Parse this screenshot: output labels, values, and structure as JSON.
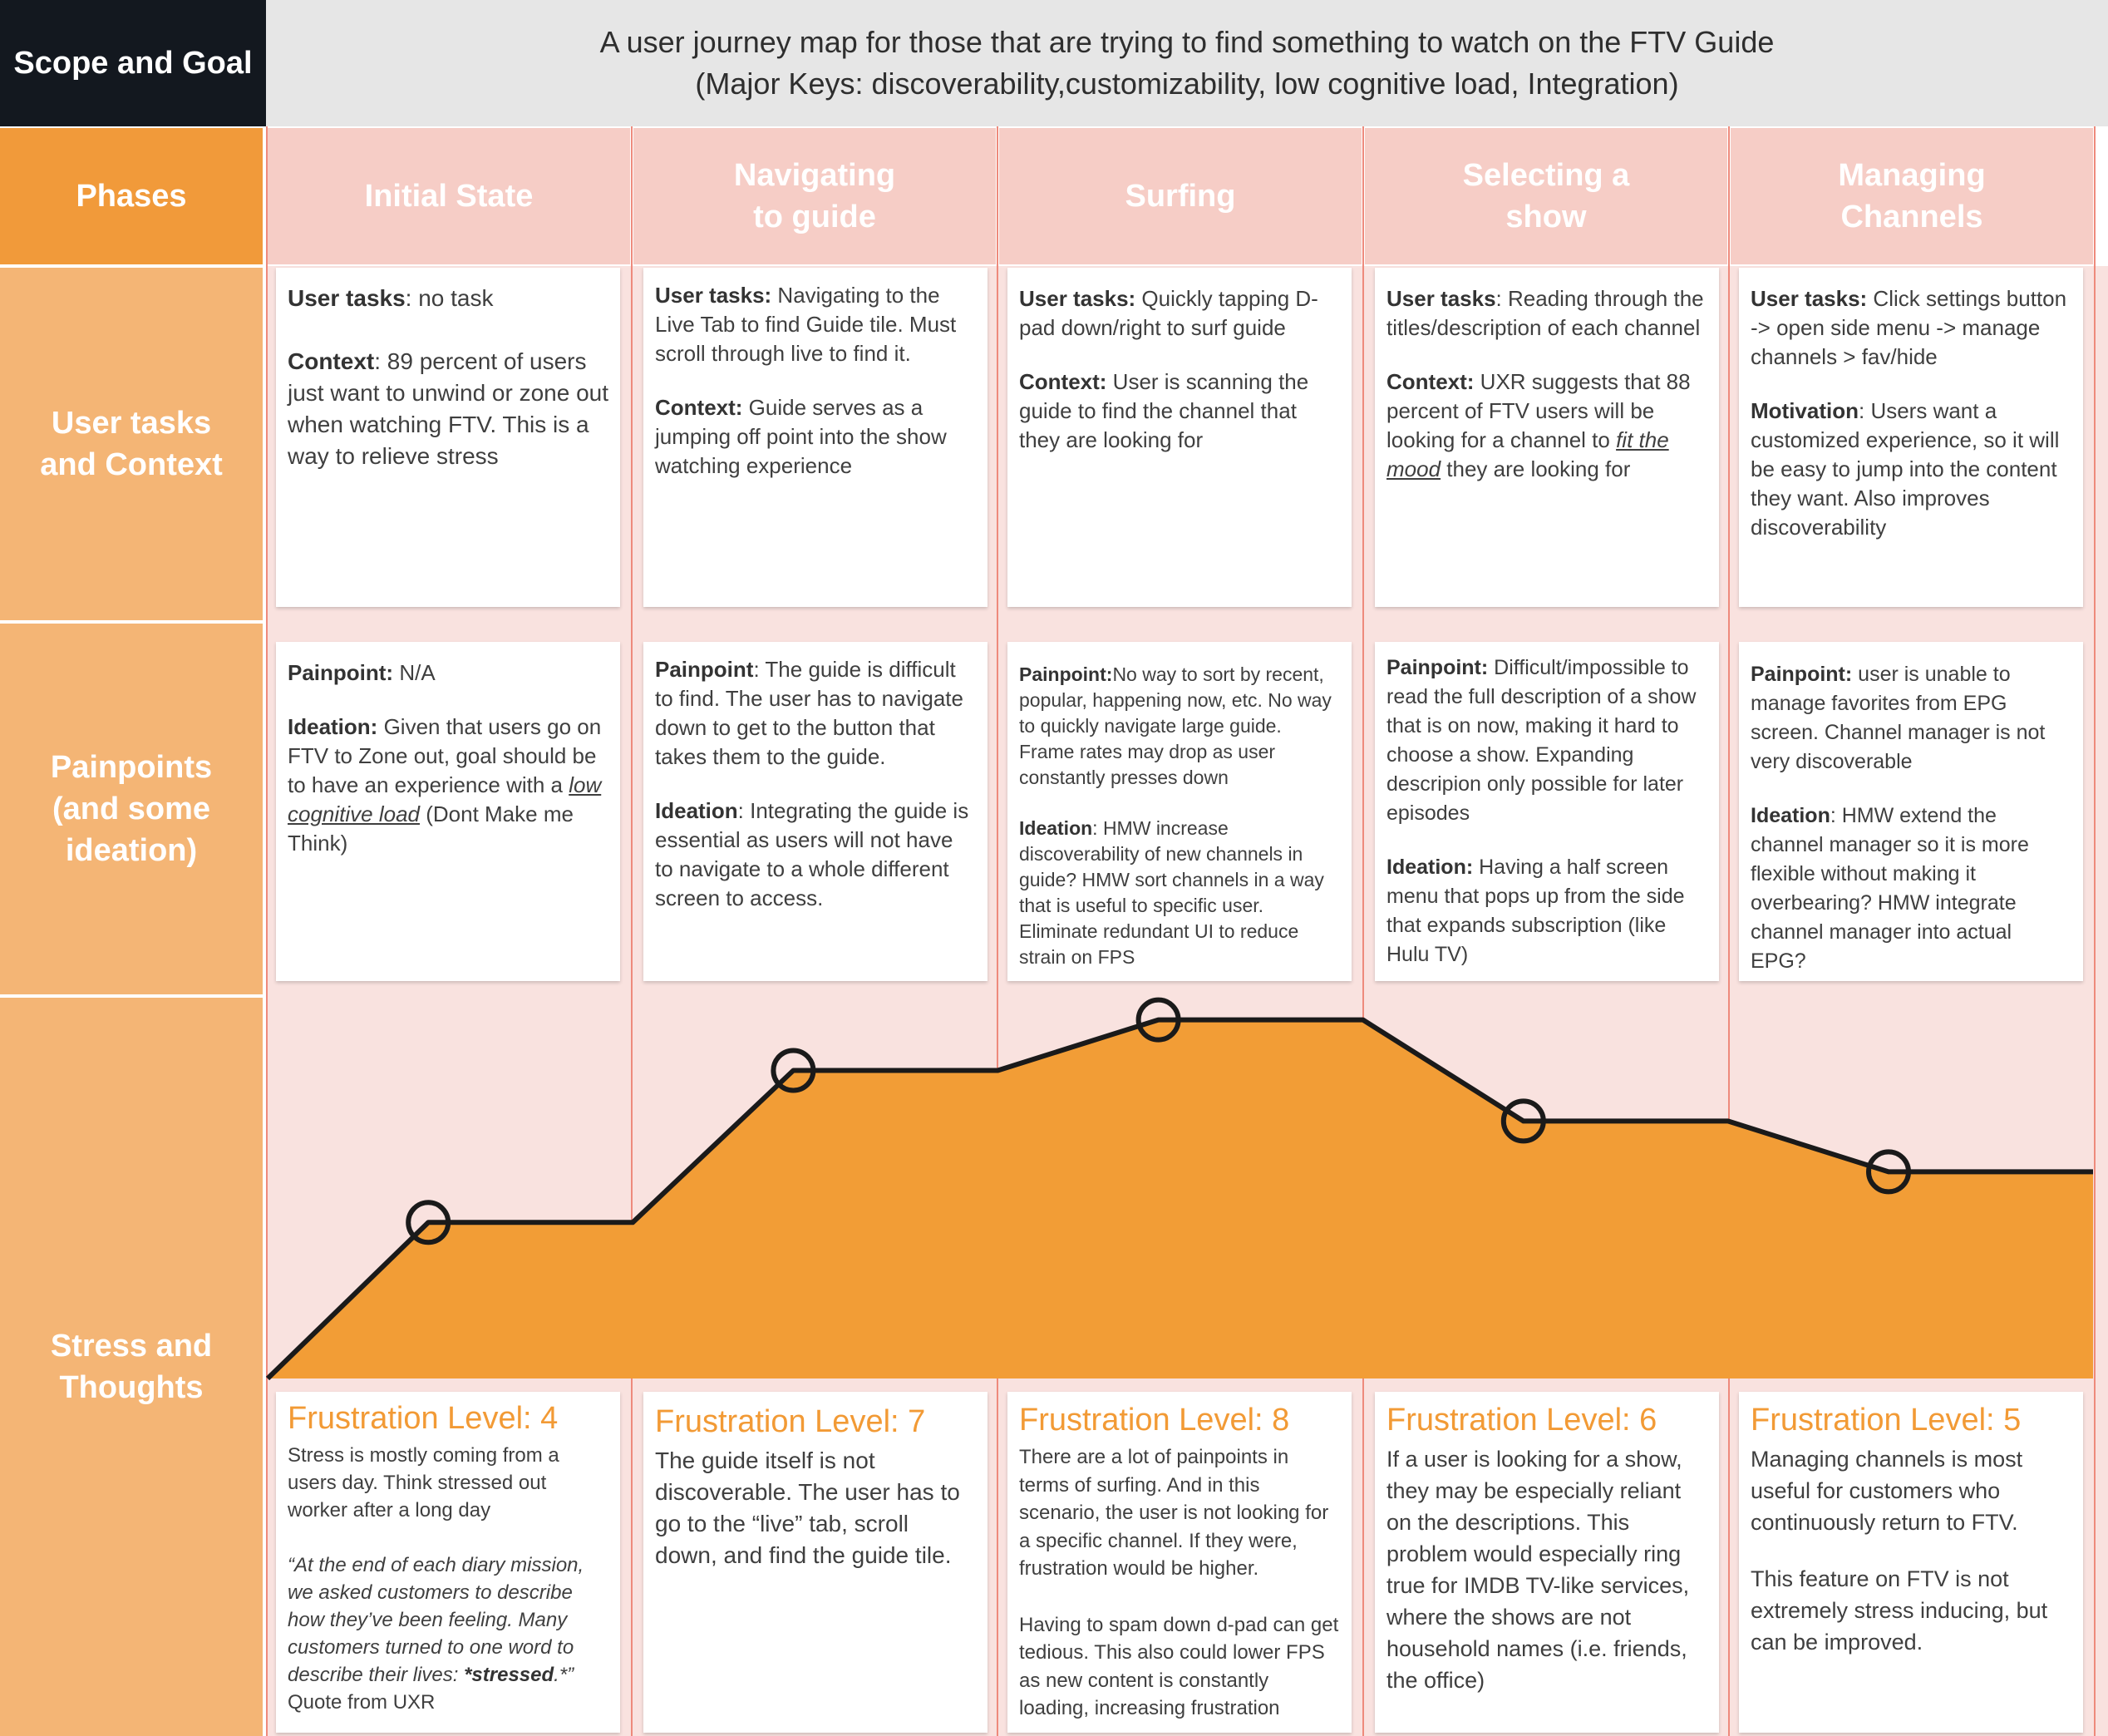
{
  "header": {
    "scope_label": "Scope and Goal",
    "title": "A user journey map for those that are trying to find something to watch on the FTV Guide",
    "subtitle": "(Major Keys: discoverability,customizability, low cognitive load, Integration)"
  },
  "rows": {
    "phases": "Phases",
    "tasks": "User tasks\nand Context",
    "pain": "Painpoints\n(and some\nideation)",
    "stress": "Stress and\nThoughts"
  },
  "phases": [
    "Initial State",
    "Navigating\nto guide",
    "Surfing",
    "Selecting a\nshow",
    "Managing\nChannels"
  ],
  "tasks": [
    {
      "t_label": "User tasks",
      "t_text": ": no task",
      "c_label": "Context",
      "c_text": ": 89 percent of users just want to unwind or zone out when watching FTV. This is a way to relieve stress"
    },
    {
      "t_label": "User tasks:",
      "t_text": " Navigating to the Live Tab to find Guide tile. Must scroll through live to find it.",
      "c_label": "Context:",
      "c_text": " Guide serves as a jumping off point into the show watching experience"
    },
    {
      "t_label": "User tasks:",
      "t_text": " Quickly tapping D-pad down/right to surf guide",
      "c_label": "Context:",
      "c_text": " User is scanning the guide to find the channel that they are looking for"
    },
    {
      "t_label": "User tasks",
      "t_text": ": Reading through the titles/description of each channel",
      "c_label": "Context:",
      "c_text_a": " UXR suggests that 88 percent of FTV users will be looking for a channel to ",
      "c_link": "fit the mood",
      "c_text_b": " they are looking for"
    },
    {
      "t_label": "User tasks:",
      "t_text": " Click settings button -> open side menu -> manage channels > fav/hide",
      "c_label": "Motivation",
      "c_text": ": Users want a customized experience, so it will be easy to jump into the content they want. Also improves discoverability"
    }
  ],
  "pains": [
    {
      "p_label": "Painpoint:",
      "p_text": " N/A",
      "i_label": "Ideation:",
      "i_text_a": " Given that users go on FTV to Zone out, goal should be to have an experience with a ",
      "i_link": "low cognitive load",
      "i_text_b": " (Dont Make me Think)"
    },
    {
      "p_label": "Painpoint",
      "p_text": ": The guide is difficult to find. The user has to navigate down to get to the button that takes them to the guide.",
      "i_label": "Ideation",
      "i_text": ": Integrating the guide is essential as users will not have to navigate to a whole different screen to access."
    },
    {
      "p_label": "Painpoint:",
      "p_text": "No way to sort by recent, popular, happening now, etc. No way to quickly navigate large guide. Frame rates may drop as user constantly presses down",
      "i_label": "Ideation",
      "i_text": ": HMW increase discoverability of new channels in guide? HMW sort channels in a way that is useful to specific user. Eliminate redundant UI to reduce strain on FPS"
    },
    {
      "p_label": "Painpoint:",
      "p_text": " Difficult/impossible to read the full description of a show that is on now, making it hard to choose a show. Expanding descripion only possible for later episodes",
      "i_label": "Ideation:",
      "i_text": " Having a half screen menu that pops up from the side that expands subscription (like Hulu TV)"
    },
    {
      "p_label": "Painpoint:",
      "p_text": " user is unable to manage favorites from EPG screen. Channel manager is not very discoverable",
      "i_label": "Ideation",
      "i_text": ": HMW extend the channel manager so it is more flexible without making it overbearing? HMW integrate channel manager into actual EPG?"
    }
  ],
  "stress": [
    {
      "level": "Frustration Level: 4",
      "text": "Stress is mostly coming from a users day. Think stressed out worker after a long day",
      "quote_a": "“At the end of each diary mission, we asked customers to describe how they’ve been feeling. Many customers turned to one word to describe their lives: ",
      "quote_b": "*stressed",
      "quote_c": ".*”",
      "source": "Quote from UXR"
    },
    {
      "level": "Frustration Level: 7",
      "text": "The guide itself is not discoverable. The user has to go to the “live” tab, scroll down, and find the guide tile."
    },
    {
      "level": "Frustration Level: 8",
      "text": "There are a lot of painpoints in terms of surfing. And in this scenario, the user is not looking for a specific channel. If they were, frustration would be higher.",
      "text2": "Having to spam down d-pad can get tedious. This also could lower FPS as new content is constantly loading, increasing frustration"
    },
    {
      "level": "Frustration Level: 6",
      "text": "If a user is looking for a show, they may be especially reliant on the descriptions. This problem would especially ring true for IMDB TV-like services, where the shows are not household names (i.e. friends, the office)"
    },
    {
      "level": "Frustration Level: 5",
      "text": "Managing channels is most useful for customers who continuously return to FTV.",
      "text2": "This feature on FTV is not extremely stress inducing, but can be improved."
    }
  ],
  "chart_data": {
    "type": "area",
    "categories": [
      "Initial State",
      "Navigating to guide",
      "Surfing",
      "Selecting a show",
      "Managing Channels"
    ],
    "values": [
      4,
      7,
      8,
      6,
      5
    ],
    "ylim": [
      0,
      10
    ],
    "colors": {
      "fill": "#f29d36",
      "line": "#1a1a1a",
      "marker": "#ffffff"
    }
  }
}
